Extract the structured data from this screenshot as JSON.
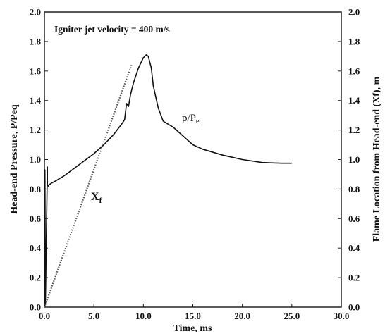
{
  "chart_data": {
    "type": "line",
    "title": "",
    "annotation": "Igniter jet velocity = 400 m/s",
    "xlabel": "Time, ms",
    "ylabel_left": "Head-end Pressure, P/Peq",
    "ylabel_right": "Flame Location from Head-end (Xf), m",
    "xlim": [
      0,
      30
    ],
    "ylim": [
      0,
      2
    ],
    "ylim_right": [
      0,
      2
    ],
    "x_ticks": [
      "0.0",
      "5.0",
      "10.0",
      "15.0",
      "20.0",
      "25.0",
      "30.0"
    ],
    "y_ticks_left": [
      "0.0",
      "0.2",
      "0.4",
      "0.6",
      "0.8",
      "1.0",
      "1.2",
      "1.4",
      "1.6",
      "1.8",
      "2.0"
    ],
    "y_ticks_right": [
      "0.0",
      "0.2",
      "0.4",
      "0.6",
      "0.8",
      "1.0",
      "1.2",
      "1.4",
      "1.6",
      "1.8",
      "2.0"
    ],
    "grid": false,
    "legend": "none",
    "series": [
      {
        "name": "p/Peq",
        "label_base": "p/P",
        "label_sub": "eq",
        "axis": "left",
        "style": "solid",
        "color": "#111111",
        "x": [
          0.05,
          0.05,
          0.1,
          0.3,
          0.3,
          0.4,
          0.5,
          0.7,
          1.0,
          2.0,
          3.0,
          4.0,
          5.0,
          6.0,
          7.0,
          7.8,
          8.1,
          8.3,
          8.5,
          8.7,
          9.0,
          9.5,
          10.0,
          10.3,
          10.5,
          10.8,
          11.0,
          11.5,
          12.0,
          13.0,
          14.0,
          15.0,
          16.0,
          18.0,
          20.0,
          22.0,
          24.0,
          25.0
        ],
        "y": [
          0.0,
          0.93,
          0.02,
          0.95,
          0.83,
          0.82,
          0.83,
          0.84,
          0.85,
          0.89,
          0.94,
          0.99,
          1.04,
          1.1,
          1.17,
          1.24,
          1.27,
          1.38,
          1.36,
          1.44,
          1.52,
          1.62,
          1.69,
          1.71,
          1.7,
          1.62,
          1.5,
          1.35,
          1.26,
          1.22,
          1.16,
          1.1,
          1.07,
          1.03,
          1.0,
          0.98,
          0.975,
          0.975
        ]
      },
      {
        "name": "Xf",
        "label_base": "X",
        "label_sub": "f",
        "axis": "right",
        "style": "dotted",
        "color": "#555555",
        "x": [
          0.0,
          8.8
        ],
        "y": [
          0.0,
          1.64
        ]
      }
    ]
  }
}
